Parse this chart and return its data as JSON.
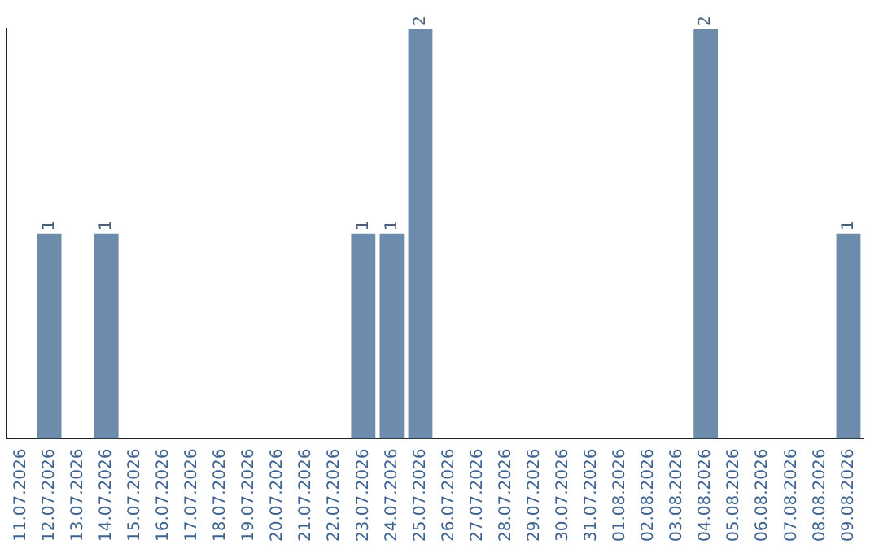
{
  "chart_data": {
    "type": "bar",
    "categories": [
      "11.07.2026",
      "12.07.2026",
      "13.07.2026",
      "14.07.2026",
      "15.07.2026",
      "16.07.2026",
      "17.07.2026",
      "18.07.2026",
      "19.07.2026",
      "20.07.2026",
      "21.07.2026",
      "22.07.2026",
      "23.07.2026",
      "24.07.2026",
      "25.07.2026",
      "26.07.2026",
      "27.07.2026",
      "28.07.2026",
      "29.07.2026",
      "30.07.2026",
      "31.07.2026",
      "01.08.2026",
      "02.08.2026",
      "03.08.2026",
      "04.08.2026",
      "05.08.2026",
      "06.08.2026",
      "07.08.2026",
      "08.08.2026",
      "09.08.2026"
    ],
    "values": [
      0,
      1,
      0,
      1,
      0,
      0,
      0,
      0,
      0,
      0,
      0,
      0,
      1,
      1,
      2,
      0,
      0,
      0,
      0,
      0,
      0,
      0,
      0,
      0,
      2,
      0,
      0,
      0,
      0,
      1
    ],
    "value_labels": [
      null,
      "1",
      null,
      "1",
      null,
      null,
      null,
      null,
      null,
      null,
      null,
      null,
      "1",
      "1",
      "2",
      null,
      null,
      null,
      null,
      null,
      null,
      null,
      null,
      null,
      "2",
      null,
      null,
      null,
      null,
      "1"
    ],
    "color": "#6d8cab",
    "tick_labels": "x",
    "grid": false,
    "legend": false
  }
}
